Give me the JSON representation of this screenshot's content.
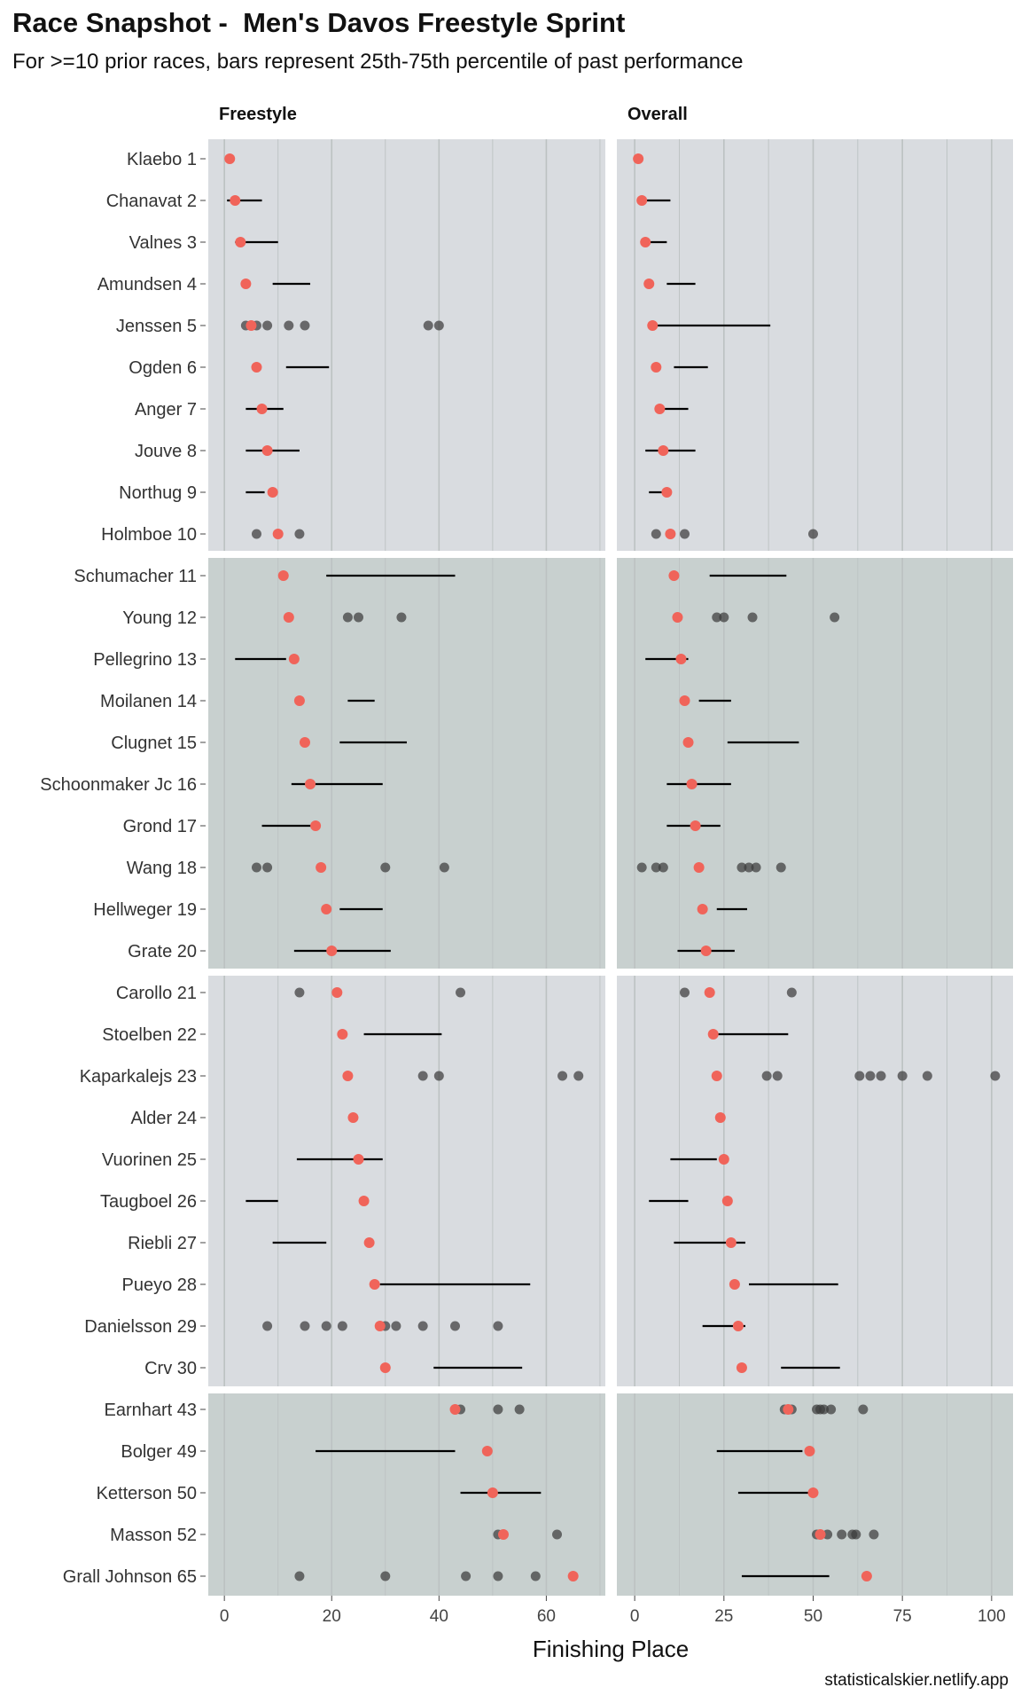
{
  "title": "Race Snapshot -  Men's Davos Freestyle Sprint",
  "subtitle": "For >=10 prior races, bars represent 25th-75th percentile of past performance",
  "caption": "statisticalskier.netlify.app",
  "colors": {
    "panel_light": "#d9dce0",
    "panel_dark": "#c8d0cf",
    "gridline": "#bcc2c2",
    "current_point": "#f0645a",
    "past_point": "#3c3c3c",
    "bar": "#000000"
  },
  "chart_data": {
    "type": "scatter",
    "xlabel": "Finishing Place",
    "grid": true,
    "legend": "none",
    "athletes": [
      "Klaebo 1",
      "Chanavat 2",
      "Valnes 3",
      "Amundsen 4",
      "Jenssen 5",
      "Ogden 6",
      "Anger 7",
      "Jouve 8",
      "Northug 9",
      "Holmboe 10",
      "Schumacher 11",
      "Young 12",
      "Pellegrino 13",
      "Moilanen 14",
      "Clugnet 15",
      "Schoonmaker Jc 16",
      "Grond 17",
      "Wang 18",
      "Hellweger 19",
      "Grate 20",
      "Carollo 21",
      "Stoelben 22",
      "Kaparkalejs 23",
      "Alder 24",
      "Vuorinen 25",
      "Taugboel 26",
      "Riebli 27",
      "Pueyo 28",
      "Danielsson 29",
      "Crv 30",
      "Earnhart 43",
      "Bolger 49",
      "Ketterson 50",
      "Masson 52",
      "Grall Johnson 65"
    ],
    "current_place": [
      1,
      2,
      3,
      4,
      5,
      6,
      7,
      8,
      9,
      10,
      11,
      12,
      13,
      14,
      15,
      16,
      17,
      18,
      19,
      20,
      21,
      22,
      23,
      24,
      25,
      26,
      27,
      28,
      29,
      30,
      43,
      49,
      50,
      52,
      65
    ],
    "groups": [
      [
        0,
        9
      ],
      [
        10,
        19
      ],
      [
        20,
        29
      ],
      [
        30,
        34
      ]
    ],
    "panels": [
      {
        "name": "Freestyle",
        "xlim": [
          -3,
          71
        ],
        "xticks": [
          0,
          20,
          40,
          60
        ],
        "ranges": [
          null,
          [
            0.5,
            7
          ],
          [
            2,
            10
          ],
          [
            9,
            16
          ],
          null,
          [
            11.5,
            19.5
          ],
          [
            4,
            11
          ],
          [
            4,
            14
          ],
          [
            4,
            7.5
          ],
          null,
          [
            19,
            43
          ],
          null,
          [
            2,
            11.5
          ],
          [
            23,
            28
          ],
          [
            21.5,
            34
          ],
          [
            12.5,
            29.5
          ],
          [
            7,
            17
          ],
          null,
          [
            21.5,
            29.5
          ],
          [
            13,
            31
          ],
          null,
          [
            26,
            40.5
          ],
          null,
          null,
          [
            13.5,
            29.5
          ],
          [
            4,
            10
          ],
          [
            9,
            19
          ],
          [
            29,
            57
          ],
          null,
          [
            39,
            55.5
          ],
          null,
          [
            17,
            43
          ],
          [
            44,
            59
          ],
          null,
          null
        ],
        "past_results": [
          [],
          [],
          [],
          [],
          [
            4,
            6,
            8,
            12,
            15,
            38,
            40
          ],
          [],
          [],
          [],
          [],
          [
            6,
            14
          ],
          [],
          [
            23,
            25,
            33
          ],
          [],
          [],
          [],
          [],
          [],
          [
            6,
            8,
            30,
            41
          ],
          [],
          [],
          [
            14,
            44
          ],
          [],
          [
            37,
            40,
            63,
            66
          ],
          [],
          [],
          [],
          [],
          [],
          [
            8,
            15,
            19,
            22,
            30,
            32,
            37,
            43,
            51
          ],
          [],
          [
            44,
            51,
            55
          ],
          [],
          [],
          [
            51,
            62
          ],
          [
            14,
            30,
            45,
            51,
            58
          ]
        ]
      },
      {
        "name": "Overall",
        "xlim": [
          -5,
          106
        ],
        "xticks": [
          0,
          25,
          50,
          75,
          100
        ],
        "xtick_labels": [
          "0",
          "25",
          "50",
          "75",
          "100"
        ],
        "ranges": [
          null,
          [
            1,
            10
          ],
          [
            2,
            9
          ],
          [
            9,
            17
          ],
          [
            6,
            38
          ],
          [
            11,
            20.5
          ],
          [
            6,
            15
          ],
          [
            3,
            17
          ],
          [
            4,
            8
          ],
          null,
          [
            21,
            42.5
          ],
          null,
          [
            3,
            15
          ],
          [
            18,
            27
          ],
          [
            26,
            46
          ],
          [
            9,
            27
          ],
          [
            9,
            24
          ],
          null,
          [
            23,
            31.5
          ],
          [
            12,
            28
          ],
          null,
          [
            23,
            43
          ],
          null,
          null,
          [
            10,
            23
          ],
          [
            4,
            15
          ],
          [
            11,
            31
          ],
          [
            32,
            57
          ],
          [
            19,
            31
          ],
          [
            41,
            57.5
          ],
          null,
          [
            23,
            47
          ],
          [
            29,
            49
          ],
          null,
          [
            30,
            54.5
          ]
        ],
        "past_results": [
          [],
          [],
          [],
          [],
          [],
          [],
          [],
          [],
          [],
          [
            6,
            14,
            50
          ],
          [],
          [
            23,
            25,
            33,
            56
          ],
          [],
          [],
          [],
          [],
          [],
          [
            2,
            6,
            8,
            30,
            32,
            34,
            41
          ],
          [],
          [],
          [
            14,
            44
          ],
          [],
          [
            37,
            40,
            63,
            66,
            69,
            75,
            82,
            101
          ],
          [],
          [],
          [],
          [],
          [],
          [],
          [],
          [
            42,
            44,
            51,
            52,
            53,
            55,
            64
          ],
          [],
          [],
          [
            51,
            54,
            58,
            61,
            62,
            67
          ],
          []
        ]
      }
    ]
  }
}
